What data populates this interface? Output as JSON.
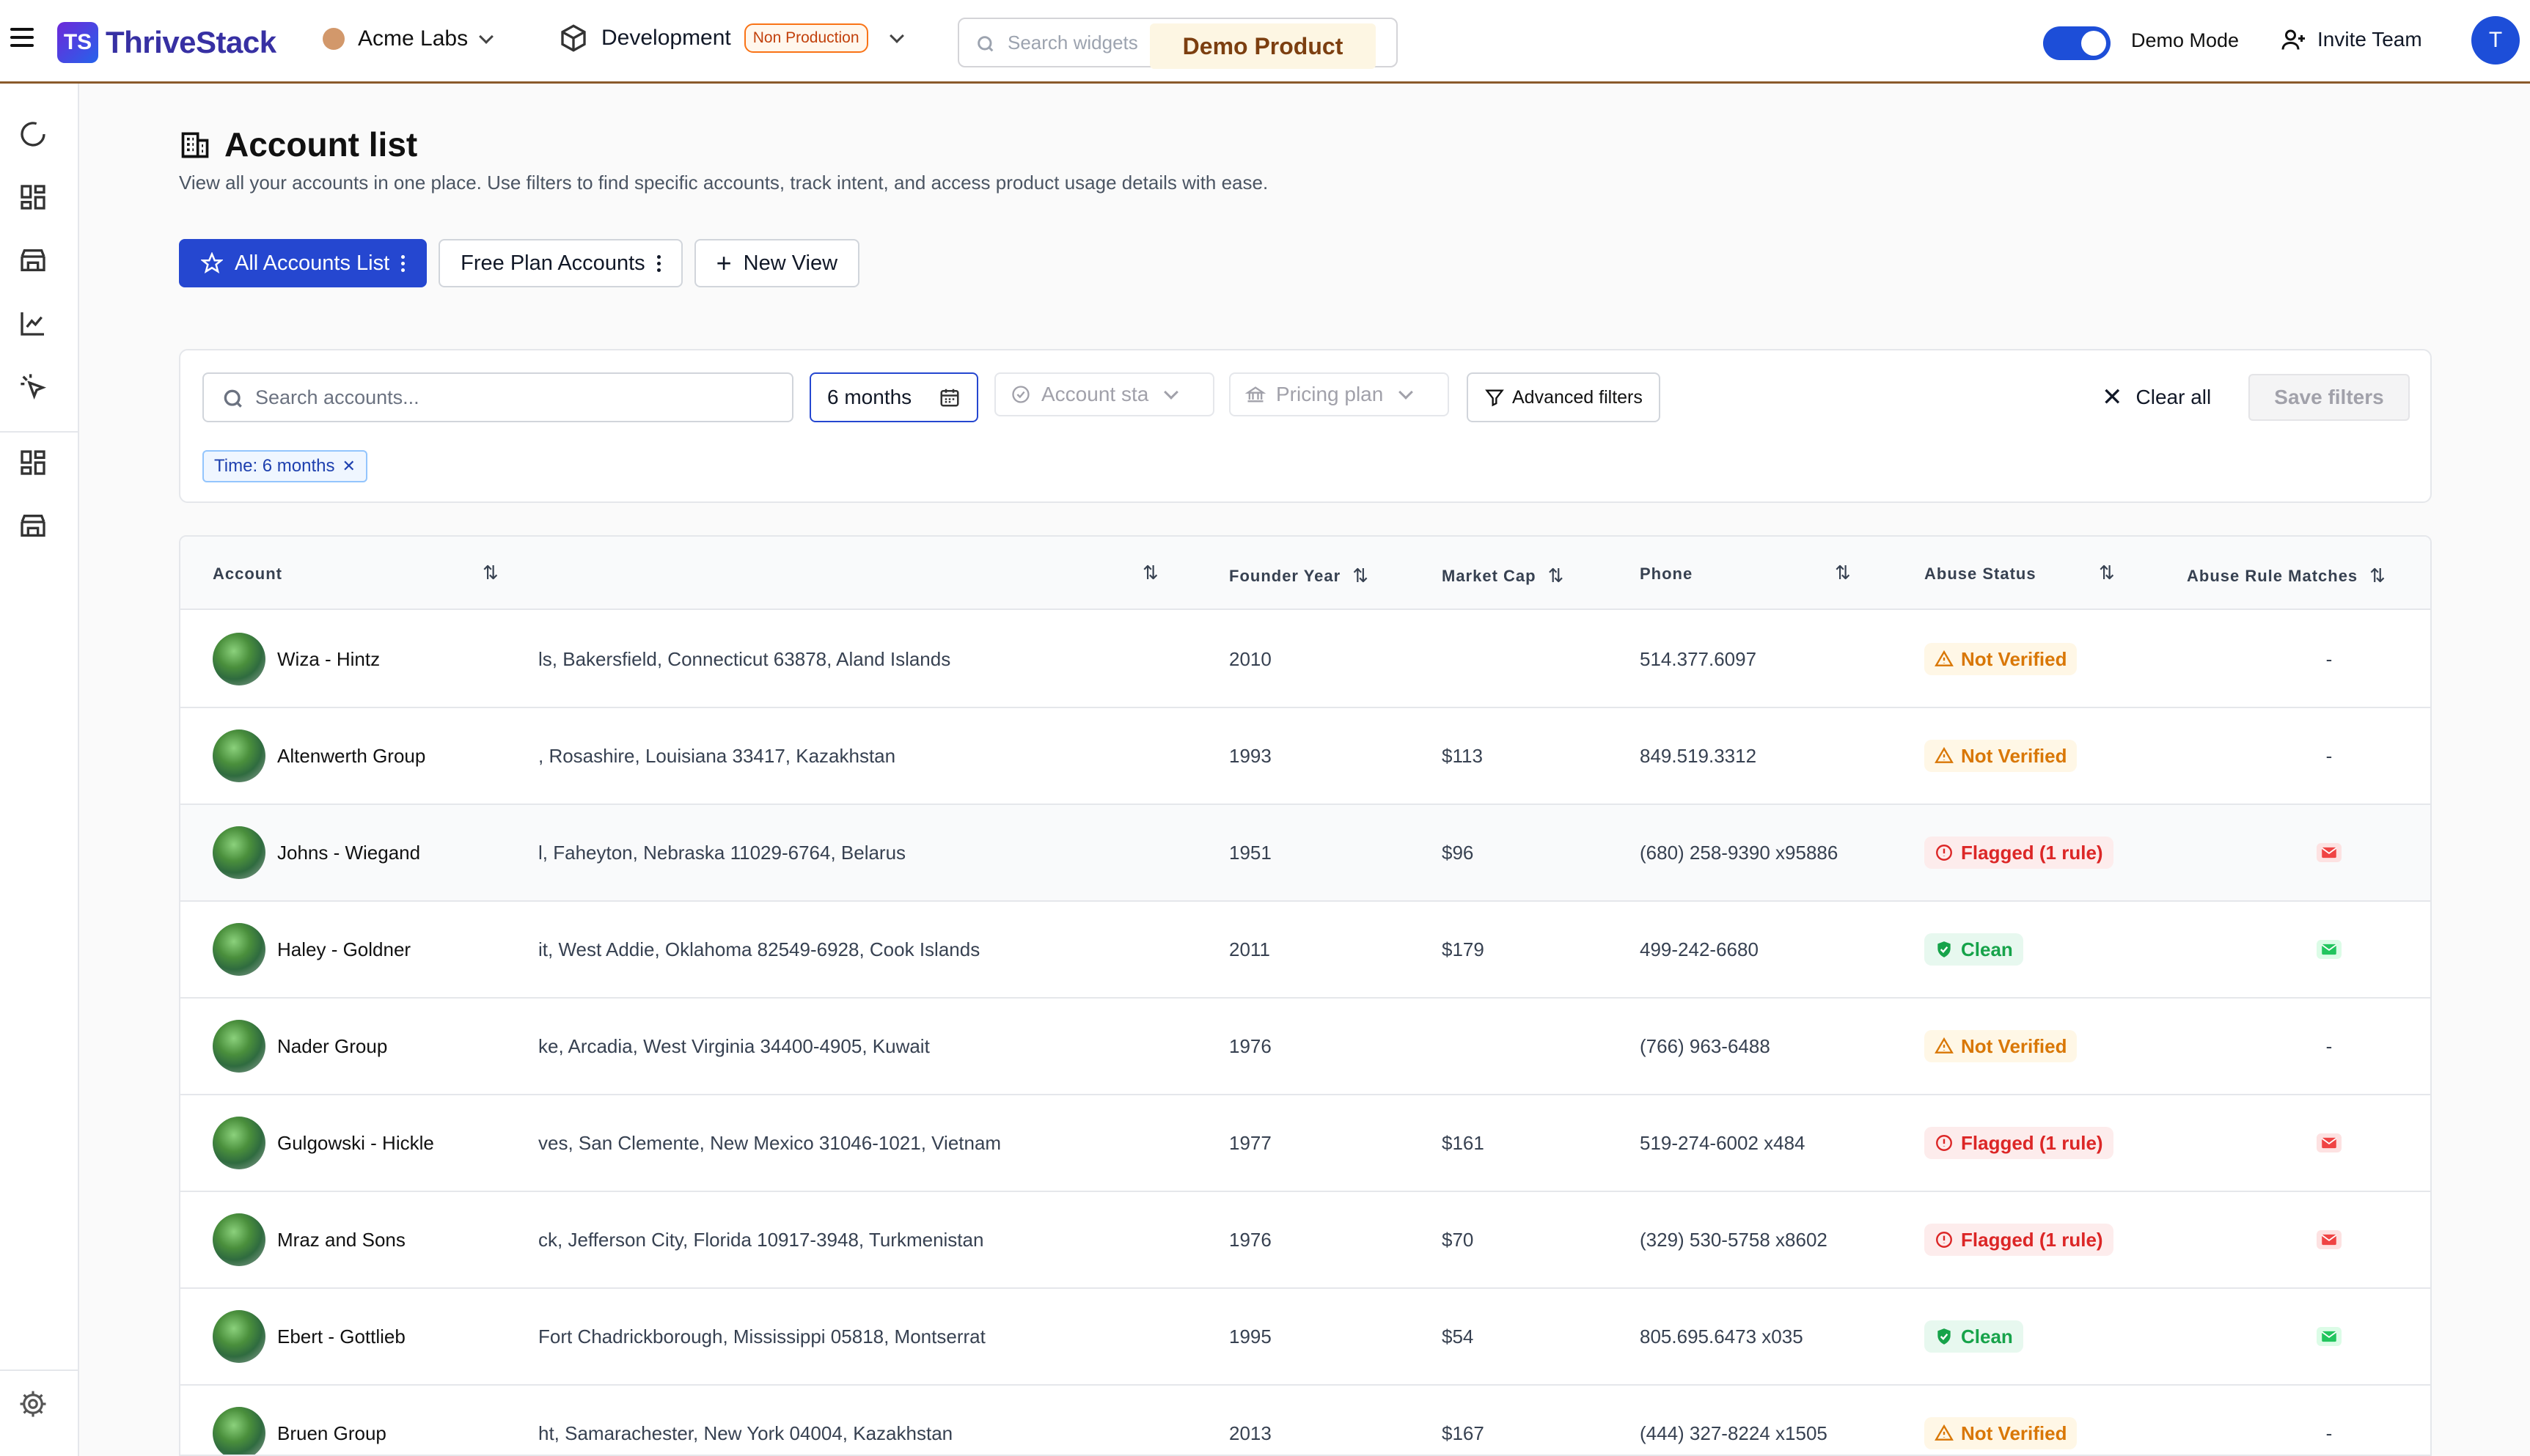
{
  "topbar": {
    "logo_mark": "TS",
    "brand": "ThriveStack",
    "org": "Acme Labs",
    "environment": "Development",
    "env_badge": "Non Production",
    "search_placeholder": "Search widgets",
    "demo_product": "Demo Product",
    "demo_mode_label": "Demo Mode",
    "demo_mode_on": true,
    "invite_label": "Invite Team",
    "avatar_initial": "T"
  },
  "sidebar": {
    "icons": [
      "loading-icon",
      "dashboard-icon",
      "store-icon",
      "chart-icon",
      "cursor-click-icon",
      "dashboard-icon",
      "store-icon",
      "gear-icon"
    ]
  },
  "page": {
    "title": "Account list",
    "description": "View all your accounts in one place. Use filters to find specific accounts, track intent, and access product usage details with ease."
  },
  "views": {
    "all_accounts": "All Accounts List",
    "free_plan": "Free Plan Accounts",
    "new_view": "New View"
  },
  "filters": {
    "search_placeholder": "Search accounts...",
    "time_value": "6 months",
    "account_status_placeholder": "Account sta",
    "pricing_plan_placeholder": "Pricing plan",
    "advanced": "Advanced filters",
    "clear_all": "Clear all",
    "save_filters": "Save filters",
    "active_chip": "Time: 6 months"
  },
  "table": {
    "headers": {
      "account": "Account",
      "founder_year": "Founder Year",
      "market_cap": "Market Cap",
      "phone": "Phone",
      "abuse_status": "Abuse Status",
      "abuse_rule_matches": "Abuse Rule Matches"
    },
    "rows": [
      {
        "name": "Wiza - Hintz",
        "address": "ls, Bakersfield, Connecticut 63878, Aland Islands",
        "year": "2010",
        "cap": "",
        "phone": "514.377.6097",
        "status": "Not Verified",
        "status_type": "nv",
        "match": "-"
      },
      {
        "name": "Altenwerth Group",
        "address": ", Rosashire, Louisiana 33417, Kazakhstan",
        "year": "1993",
        "cap": "$113",
        "phone": "849.519.3312",
        "status": "Not Verified",
        "status_type": "nv",
        "match": "-"
      },
      {
        "name": "Johns - Wiegand",
        "address": "l, Faheyton, Nebraska 11029-6764, Belarus",
        "year": "1951",
        "cap": "$96",
        "phone": "(680) 258-9390 x95886",
        "status": "Flagged (1 rule)",
        "status_type": "fl",
        "match": "mail-red"
      },
      {
        "name": "Haley - Goldner",
        "address": "it, West Addie, Oklahoma 82549-6928, Cook Islands",
        "year": "2011",
        "cap": "$179",
        "phone": "499-242-6680",
        "status": "Clean",
        "status_type": "cl",
        "match": "mail-green"
      },
      {
        "name": "Nader Group",
        "address": "ke, Arcadia, West Virginia 34400-4905, Kuwait",
        "year": "1976",
        "cap": "",
        "phone": "(766) 963-6488",
        "status": "Not Verified",
        "status_type": "nv",
        "match": "-"
      },
      {
        "name": "Gulgowski - Hickle",
        "address": "ves, San Clemente, New Mexico 31046-1021, Vietnam",
        "year": "1977",
        "cap": "$161",
        "phone": "519-274-6002 x484",
        "status": "Flagged (1 rule)",
        "status_type": "fl",
        "match": "mail-red"
      },
      {
        "name": "Mraz and Sons",
        "address": "ck, Jefferson City, Florida 10917-3948, Turkmenistan",
        "year": "1976",
        "cap": "$70",
        "phone": "(329) 530-5758 x8602",
        "status": "Flagged (1 rule)",
        "status_type": "fl",
        "match": "mail-red"
      },
      {
        "name": "Ebert - Gottlieb",
        "address": "Fort Chadrickborough, Mississippi 05818, Montserrat",
        "year": "1995",
        "cap": "$54",
        "phone": "805.695.6473 x035",
        "status": "Clean",
        "status_type": "cl",
        "match": "mail-green"
      },
      {
        "name": "Bruen Group",
        "address": "ht, Samarachester, New York 04004, Kazakhstan",
        "year": "2013",
        "cap": "$167",
        "phone": "(444) 327-8224 x1505",
        "status": "Not Verified",
        "status_type": "nv",
        "match": "-"
      }
    ]
  },
  "colors": {
    "accent": "#2547d0",
    "topbar_border": "#8a5a2b",
    "not_verified": "#d97706",
    "flagged": "#dc2626",
    "clean": "#16a34a"
  }
}
